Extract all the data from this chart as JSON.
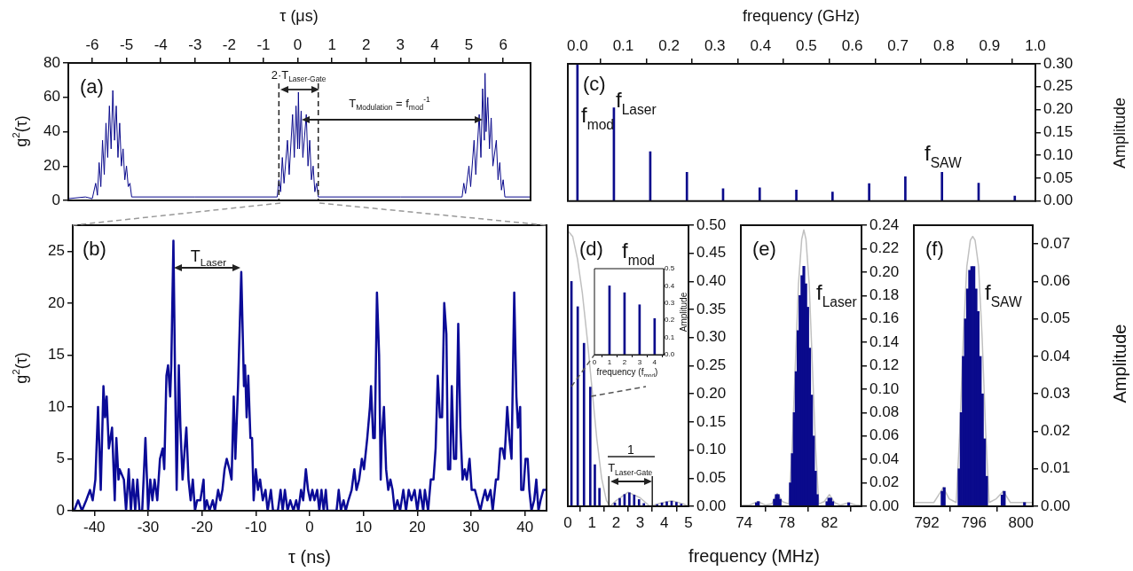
{
  "chart_data": [
    {
      "type": "line",
      "xlabel": "τ (μs)",
      "ylabel": "g$^{2}$(τ)",
      "annotations": [
        "(a)",
        {
          "text": "2·T$_{Laser-Gate}$",
          "x": 0.025,
          "y": 64.5
        },
        "T$_{Modulation}$ = f$_{mod}$$^{-1}$"
      ],
      "xlim": [
        -6.7,
        6.8
      ],
      "xticks": [
        -6,
        -5,
        -4,
        -3,
        -2,
        -1,
        0,
        1,
        2,
        3,
        4,
        5,
        6
      ],
      "ylim": [
        0,
        80
      ],
      "yticks": [
        0,
        20,
        40,
        60,
        80
      ],
      "ref_lines": [
        {
          "axis": "x",
          "value": -0.55,
          "line_style": "dashed",
          "color": "#222222"
        },
        {
          "axis": "x",
          "value": 0.6,
          "line_style": "dashed",
          "color": "#222222"
        }
      ],
      "series": [
        {
          "color": "#0a0a8c",
          "x": [
            -6.7,
            -6.2,
            -6.0,
            -5.9,
            -5.85,
            -5.8,
            -5.75,
            -5.7,
            -5.65,
            -5.6,
            -5.55,
            -5.5,
            -5.45,
            -5.4,
            -5.35,
            -5.3,
            -5.25,
            -5.2,
            -5.15,
            -5.1,
            -5.05,
            -5.0,
            -4.95,
            -4.9,
            -4.85,
            -3,
            -0.6,
            -0.55,
            -0.5,
            -0.45,
            -0.4,
            -0.3,
            -0.25,
            -0.15,
            -0.1,
            -0.05,
            0,
            0.02,
            0.05,
            0.1,
            0.15,
            0.25,
            0.3,
            0.35,
            0.4,
            0.45,
            0.5,
            0.55,
            0.6,
            3,
            4.8,
            4.85,
            4.9,
            5.0,
            5.05,
            5.15,
            5.2,
            5.3,
            5.35,
            5.4,
            5.45,
            5.47,
            5.5,
            5.55,
            5.6,
            5.65,
            5.7,
            5.8,
            5.85,
            5.9,
            5.95,
            6.0,
            6.05,
            6.8
          ],
          "values": [
            1,
            2,
            1,
            10,
            3,
            22,
            8,
            35,
            15,
            45,
            25,
            55,
            30,
            64,
            35,
            55,
            25,
            45,
            20,
            30,
            12,
            20,
            8,
            10,
            2,
            2,
            2,
            12,
            5,
            25,
            10,
            35,
            15,
            50,
            25,
            55,
            30,
            63,
            30,
            52,
            25,
            50,
            20,
            35,
            12,
            20,
            5,
            10,
            2,
            2,
            2,
            10,
            4,
            20,
            8,
            35,
            15,
            50,
            25,
            65,
            35,
            74,
            40,
            60,
            30,
            48,
            20,
            35,
            12,
            22,
            6,
            12,
            2,
            2
          ]
        }
      ]
    },
    {
      "type": "bar",
      "xlabel": "frequency (GHz)",
      "ylabel": "Amplitude",
      "annotations": [
        "(c)",
        "f$_{mod}$",
        "f$_{Laser}$",
        "f$_{SAW}$"
      ],
      "xlim": [
        -0.021,
        1.0
      ],
      "xticks": [
        {
          "value": 0,
          "label": "0.0"
        },
        0.1,
        0.2,
        0.3,
        0.4,
        0.5,
        0.6,
        0.7,
        0.8,
        0.9,
        {
          "value": 1,
          "label": "1.0"
        }
      ],
      "ylim": [
        0,
        0.3
      ],
      "yticks": [
        {
          "value": 0,
          "label": "0.00"
        },
        0.05,
        {
          "value": 0.1,
          "label": "0.10"
        },
        0.15,
        {
          "value": 0.2,
          "label": "0.20"
        },
        0.25,
        {
          "value": 0.3,
          "label": "0.30"
        }
      ],
      "series": [
        {
          "color": "#0a0a8c",
          "x": [
            0,
            0.0796,
            0.159,
            0.239,
            0.318,
            0.398,
            0.478,
            0.557,
            0.637,
            0.716,
            0.796,
            0.876,
            0.955
          ],
          "values": [
            0.3,
            0.204,
            0.108,
            0.063,
            0.027,
            0.029,
            0.024,
            0.02,
            0.038,
            0.053,
            0.063,
            0.039,
            0.011
          ]
        }
      ]
    },
    {
      "type": "line",
      "xlabel": "τ (ns)",
      "ylabel": "g$^{2}$(τ)",
      "annotations": [
        "(b)",
        {
          "text": "T$_{Laser}$",
          "x": -12.7,
          "y": 23
        }
      ],
      "xlim": [
        -44,
        44
      ],
      "xticks": [
        -40,
        -30,
        -20,
        -10,
        0,
        10,
        20,
        30,
        40
      ],
      "ylim": [
        0,
        27.5
      ],
      "yticks": [
        0,
        5,
        10,
        15,
        20,
        25
      ],
      "series": [
        {
          "color": "#0b0b97",
          "x": [
            -43.75,
            -43,
            -42.3,
            -41.5,
            -40.8,
            -40.3,
            -39.8,
            -39.3,
            -38.8,
            -38.3,
            -38,
            -37.7,
            -37.3,
            -36.7,
            -36.2,
            -35.9,
            -35.5,
            -35.3,
            -34.5,
            -34.1,
            -33.6,
            -33.2,
            -32.8,
            -32.4,
            -32,
            -31.6,
            -31.1,
            -30.5,
            -30,
            -29.6,
            -29.2,
            -28.8,
            -28.3,
            -27.8,
            -27.3,
            -27,
            -26.6,
            -26.3,
            -25.9,
            -25.7,
            -25.3,
            -25,
            -24.7,
            -24.3,
            -24,
            -23.6,
            -23.2,
            -22.9,
            -22.5,
            -22.1,
            -21.7,
            -21.3,
            -20.9,
            -20.3,
            -19.7,
            -19.5,
            -19.1,
            -18.6,
            -18,
            -17.6,
            -17,
            -16.6,
            -16.2,
            -15.8,
            -15.4,
            -14.9,
            -14.5,
            -14.1,
            -13.8,
            -13.3,
            -12.7,
            -12.2,
            -12,
            -11.7,
            -11.4,
            -11,
            -10.7,
            -10.4,
            -10,
            -9.6,
            -9.2,
            -8.7,
            -8.2,
            -7.8,
            -7.2,
            -6.8,
            -5.9,
            -5.4,
            -5,
            -4.6,
            -4.1,
            -3.6,
            -3,
            -2.5,
            -2.1,
            -1.6,
            -1.2,
            -0.7,
            -0.3,
            0.1,
            0.5,
            0.9,
            1.4,
            1.8,
            2.2,
            2.6,
            3,
            3.3,
            5,
            5.4,
            5.8,
            6.3,
            6.7,
            7.2,
            7.8,
            8.3,
            8.7,
            9.2,
            9.7,
            10.1,
            10.7,
            11.2,
            11.4,
            11.8,
            12.1,
            12.5,
            12.9,
            13.2,
            13.4,
            13.8,
            14.2,
            14.6,
            15,
            15.4,
            15.8,
            16.3,
            16.8,
            17.4,
            17.9,
            18.4,
            18.9,
            19.5,
            20,
            20.5,
            21.1,
            21.4,
            22,
            22.5,
            23,
            23.4,
            23.8,
            24.2,
            24.6,
            25,
            25.4,
            25.7,
            26.1,
            26.4,
            26.8,
            27.2,
            27.6,
            28,
            28.4,
            28.8,
            29.2,
            29.7,
            30.1,
            30.7,
            31.2,
            31.7,
            32.1,
            32.6,
            33,
            33.6,
            34,
            34.6,
            35,
            35.4,
            35.8,
            36.2,
            36.7,
            37.1,
            37.5,
            38,
            38.4,
            38.7,
            39.1,
            39.3,
            39.7,
            40.1,
            40.5,
            40.8,
            41.2,
            41.7,
            42.1,
            42.5,
            42.9,
            43.4,
            43.9
          ],
          "values": [
            0,
            1,
            0,
            1,
            2,
            1,
            3,
            10,
            2,
            12,
            9,
            11,
            6,
            8,
            1,
            7,
            3,
            4,
            3,
            0,
            4,
            0,
            3,
            0,
            3,
            0,
            0,
            7,
            0,
            3,
            1,
            3,
            1,
            5,
            6,
            4,
            13,
            14,
            11,
            14,
            26,
            13,
            2,
            14,
            8,
            3,
            6,
            8,
            3,
            1,
            3,
            0,
            1,
            1,
            3,
            0,
            1,
            0,
            1,
            0,
            2,
            1,
            2,
            4,
            5,
            4,
            3,
            11,
            5,
            12,
            23,
            12,
            14,
            9,
            13,
            7,
            7,
            1,
            4,
            2,
            3,
            1,
            2,
            0,
            2,
            0,
            0,
            2,
            0,
            2,
            0,
            1,
            0,
            1,
            0,
            2,
            1,
            4,
            2,
            1,
            2,
            1,
            2,
            0,
            2,
            0,
            2,
            0,
            0,
            2,
            0,
            1,
            0,
            1,
            2,
            4,
            2,
            3,
            5,
            4,
            7,
            10,
            12,
            7,
            7,
            21,
            15,
            3,
            7,
            10,
            4,
            2,
            3,
            2,
            0,
            1,
            0,
            2,
            0,
            2,
            1,
            2,
            0,
            2,
            0,
            2,
            0,
            3,
            3,
            6,
            13,
            9,
            9,
            20,
            17,
            4,
            4,
            12,
            5,
            5,
            18,
            8,
            3,
            4,
            3,
            5,
            2,
            2,
            1,
            0,
            1,
            2,
            1,
            2,
            0,
            3,
            3,
            6,
            6,
            5,
            10,
            7,
            5,
            21,
            11,
            8,
            10,
            2,
            2,
            5,
            5,
            2,
            0,
            1,
            3,
            0,
            1,
            2,
            2
          ]
        }
      ]
    },
    {
      "type": "bar",
      "annotations": [
        "(d)",
        "f$_{mod}$",
        "1",
        {
          "text": "T$_{Laser-Gate}$",
          "x": 1.7,
          "y": 0.044
        }
      ],
      "ref_lines": [
        {
          "axis": "x",
          "value": 1.7,
          "line_style": "solid",
          "color": "#222222"
        },
        {
          "axis": "x",
          "value": 3.5,
          "line_style": "solid",
          "color": "#222222"
        }
      ],
      "xlim": [
        0,
        5
      ],
      "xticks": [
        0,
        1,
        2,
        3,
        4,
        5
      ],
      "ylim": [
        0,
        0.5
      ],
      "yticks": [
        {
          "value": 0,
          "label": "0.00"
        },
        0.05,
        {
          "value": 0.1,
          "label": "0.10"
        },
        0.15,
        {
          "value": 0.2,
          "label": "0.20"
        },
        0.25,
        {
          "value": 0.3,
          "label": "0.30"
        },
        0.35,
        {
          "value": 0.4,
          "label": "0.40"
        },
        0.45,
        {
          "value": 0.5,
          "label": "0.50"
        }
      ],
      "series": [
        {
          "type": "line",
          "color": "#c0c0c0",
          "x": [
            0,
            0.2,
            0.4,
            0.6,
            0.8,
            1.0,
            1.2,
            1.4,
            1.6,
            1.75,
            2.0,
            2.5,
            3.0,
            3.4,
            3.8,
            4.3,
            4.8,
            5.0
          ],
          "values": [
            0.49,
            0.48,
            0.44,
            0.38,
            0.3,
            0.21,
            0.12,
            0.05,
            0.01,
            0,
            0.01,
            0.025,
            0.015,
            0,
            0.005,
            0.01,
            0.004,
            0
          ]
        },
        {
          "type": "bar",
          "color": "#0a0a8c",
          "x": [
            0.15,
            0.41,
            0.67,
            0.93,
            1.12,
            1.31,
            1.95,
            2.15,
            2.35,
            2.55,
            2.75,
            2.95,
            3.15,
            3.7,
            3.9,
            4.1,
            4.3,
            4.5,
            4.7
          ],
          "values": [
            0.4,
            0.355,
            0.29,
            0.212,
            0.074,
            0.032,
            0.006,
            0.014,
            0.021,
            0.024,
            0.02,
            0.012,
            0.005,
            0.003,
            0.006,
            0.008,
            0.009,
            0.007,
            0.004
          ]
        }
      ]
    },
    {
      "type": "bar",
      "xlabel": "frequency (f$_{mod}$)",
      "ylabel": "Amplitude",
      "xlim": [
        0,
        4.6
      ],
      "xticks": [
        0,
        1,
        2,
        3,
        4
      ],
      "ylim": [
        0,
        0.5
      ],
      "yticks": [
        {
          "value": 0,
          "label": "0.0"
        },
        0.1,
        0.2,
        0.3,
        0.4,
        0.5
      ],
      "series": [
        {
          "color": "#0a0a8c",
          "x": [
            1,
            2,
            3,
            4
          ],
          "values": [
            0.4,
            0.36,
            0.29,
            0.21
          ]
        }
      ]
    },
    {
      "type": "bar",
      "xlabel": "frequency (MHz)",
      "annotations": [
        "(e)",
        "f$_{Laser}$"
      ],
      "xlim": [
        73.7,
        85
      ],
      "xticks": [
        74,
        78,
        82
      ],
      "ylim": [
        0,
        0.24
      ],
      "yticks": [
        {
          "value": 0,
          "label": "0.00"
        },
        0.02,
        0.04,
        0.06,
        0.08,
        {
          "value": 0.1,
          "label": "0.10"
        },
        0.12,
        0.14,
        0.16,
        0.18,
        {
          "value": 0.2,
          "label": "0.20"
        },
        0.22,
        0.24
      ],
      "series": [
        {
          "type": "line",
          "color": "#c0c0c0",
          "x": [
            73.7,
            74.5,
            75.3,
            76.0,
            76.6,
            77.1,
            77.6,
            78.2,
            78.5,
            78.8,
            79.1,
            79.4,
            79.6,
            79.8,
            80.1,
            80.4,
            80.7,
            81.0,
            81.5,
            82.0,
            82.5,
            83.0,
            83.8,
            84.5,
            85
          ],
          "values": [
            0.001,
            0.001,
            0.004,
            0.001,
            0.002,
            0.011,
            0.004,
            0.002,
            0.05,
            0.12,
            0.19,
            0.228,
            0.236,
            0.228,
            0.19,
            0.12,
            0.05,
            0.002,
            0.004,
            0.01,
            0.003,
            0.001,
            0.003,
            0.001,
            0.001
          ]
        },
        {
          "type": "bar",
          "color": "#0a0a8c",
          "x": [
            75.16,
            75.34,
            76.84,
            77.02,
            77.2,
            77.38,
            78.34,
            78.52,
            78.7,
            78.88,
            79.06,
            79.24,
            79.42,
            79.6,
            79.78,
            79.96,
            80.14,
            80.32,
            80.5,
            80.68,
            80.86,
            81.76,
            81.94,
            82.12,
            82.3,
            83.8
          ],
          "values": [
            0.003,
            0.004,
            0.006,
            0.01,
            0.01,
            0.006,
            0.02,
            0.045,
            0.08,
            0.115,
            0.15,
            0.18,
            0.197,
            0.205,
            0.19,
            0.17,
            0.135,
            0.095,
            0.06,
            0.03,
            0.01,
            0.004,
            0.007,
            0.007,
            0.004,
            0.003
          ]
        }
      ]
    },
    {
      "type": "bar",
      "ylabel": "Amplitude",
      "annotations": [
        "(f)",
        "f$_{SAW}$"
      ],
      "xlim": [
        790.9,
        801
      ],
      "xticks": [
        792,
        796,
        800
      ],
      "ylim": [
        0,
        0.075
      ],
      "yticks": [
        {
          "value": 0,
          "label": "0.00"
        },
        0.01,
        0.02,
        0.03,
        0.04,
        0.05,
        0.06,
        0.07
      ],
      "series": [
        {
          "type": "line",
          "color": "#c0c0c0",
          "x": [
            790.9,
            791.8,
            792.6,
            793.0,
            793.4,
            793.9,
            794.5,
            794.8,
            795.1,
            795.4,
            795.7,
            795.9,
            796.1,
            796.4,
            796.7,
            797.0,
            797.3,
            797.9,
            798.5,
            799.1,
            799.8,
            800.4,
            801
          ],
          "values": [
            0.001,
            0.001,
            0.001,
            0.003,
            0.005,
            0.002,
            0.001,
            0.02,
            0.045,
            0.064,
            0.071,
            0.072,
            0.071,
            0.064,
            0.045,
            0.02,
            0.001,
            0.002,
            0.004,
            0.001,
            0.001,
            0.001,
            0.001
          ]
        },
        {
          "type": "bar",
          "color": "#0a0a8c",
          "x": [
            793.3,
            793.48,
            794.74,
            794.92,
            795.1,
            795.28,
            795.46,
            795.64,
            795.82,
            796.0,
            796.18,
            796.36,
            796.54,
            796.72,
            796.9,
            797.08,
            798.4,
            798.58,
            800.3
          ],
          "values": [
            0.004,
            0.005,
            0.01,
            0.025,
            0.04,
            0.05,
            0.058,
            0.063,
            0.064,
            0.064,
            0.058,
            0.052,
            0.04,
            0.03,
            0.018,
            0.008,
            0.003,
            0.004,
            0.001
          ]
        }
      ]
    }
  ]
}
